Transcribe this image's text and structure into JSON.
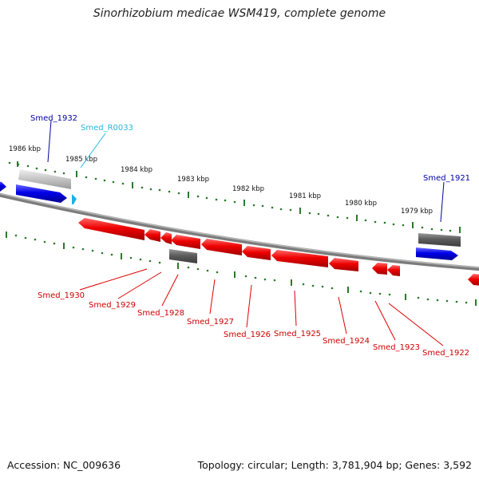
{
  "title": "Sinorhizobium medicae WSM419, complete genome",
  "footer": {
    "accession": "Accession: NC_009636",
    "summary": "Topology: circular; Length: 3,781,904 bp; Genes: 3,592"
  },
  "colors": {
    "forward_gene": "#0000e0",
    "reverse_gene": "#ee0000",
    "rna": "#1ab0e8",
    "pseudo": "#6a6a6a",
    "ticks": "#2a7a2a",
    "genome_line": "#8a8a8a"
  },
  "scale": {
    "unit": "kbp",
    "ticks": [
      "1986 kbp",
      "1985 kbp",
      "1984 kbp",
      "1983 kbp",
      "1982 kbp",
      "1981 kbp",
      "1980 kbp",
      "1979 kbp"
    ]
  },
  "features": {
    "forward": [
      {
        "label": "Smed_1932",
        "color": "#0000a0"
      },
      {
        "label": "Smed_R0033",
        "color": "#22b8e0"
      },
      {
        "label": "Smed_1921",
        "color": "#0000a0"
      }
    ],
    "reverse": [
      {
        "label": "Smed_1930"
      },
      {
        "label": "Smed_1929"
      },
      {
        "label": "Smed_1928"
      },
      {
        "label": "Smed_1927"
      },
      {
        "label": "Smed_1926"
      },
      {
        "label": "Smed_1925"
      },
      {
        "label": "Smed_1924"
      },
      {
        "label": "Smed_1923"
      },
      {
        "label": "Smed_1922"
      }
    ]
  }
}
